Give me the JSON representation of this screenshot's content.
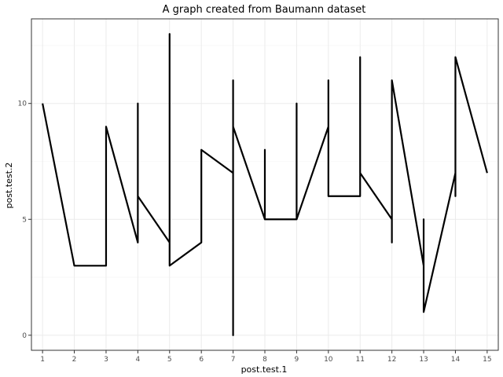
{
  "chart_data": {
    "type": "line",
    "title": "A graph created from Baumann dataset",
    "xlabel": "post.test.1",
    "ylabel": "post.test.2",
    "xlim": [
      0.65,
      15.35
    ],
    "ylim": [
      -0.65,
      13.65
    ],
    "x_ticks": [
      1,
      2,
      3,
      4,
      5,
      6,
      7,
      8,
      9,
      10,
      11,
      12,
      13,
      14,
      15
    ],
    "y_ticks": [
      0,
      5,
      10
    ],
    "grid": true,
    "legend": "none",
    "series": [
      {
        "x": [
          1,
          2,
          3,
          3,
          4,
          4,
          4,
          5,
          5,
          5,
          6,
          6,
          7,
          7,
          7,
          7,
          8,
          8,
          8,
          9,
          9,
          9,
          10,
          10,
          10,
          11,
          11,
          11,
          12,
          12,
          12,
          13,
          13,
          13,
          13,
          14,
          14,
          14,
          14,
          15
        ],
        "y": [
          10,
          3,
          3,
          9,
          4,
          10,
          6,
          4,
          13,
          3,
          4,
          8,
          7,
          0,
          11,
          9,
          5,
          8,
          5,
          5,
          10,
          5,
          9,
          11,
          6,
          6,
          12,
          7,
          5,
          4,
          11,
          3,
          5,
          3,
          1,
          7,
          6,
          12,
          12,
          7
        ]
      }
    ]
  }
}
